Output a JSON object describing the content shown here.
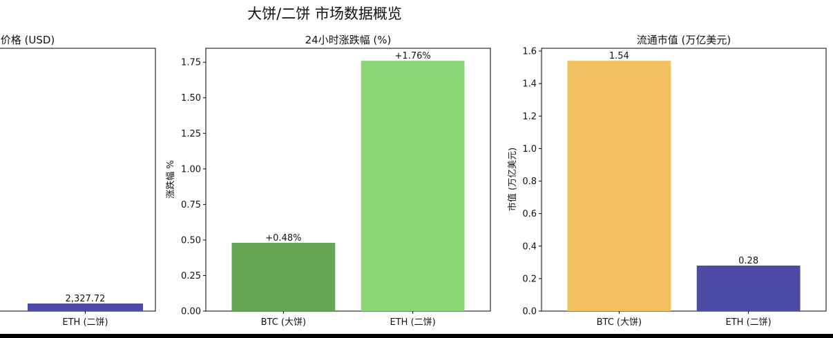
{
  "figure": {
    "suptitle": "大饼/二饼 市场数据概览"
  },
  "chart_data": [
    {
      "type": "bar",
      "title": "价格 (USD)",
      "categories": [
        "ETH (二饼)"
      ],
      "values": [
        2327.72
      ],
      "value_labels": [
        "2,327.72"
      ],
      "colors": [
        "#4c4ca6"
      ],
      "ylabel": ""
    },
    {
      "type": "bar",
      "title": "24小时涨跌幅 (%)",
      "categories": [
        "BTC (大饼)",
        "ETH (二饼)"
      ],
      "values": [
        0.48,
        1.76
      ],
      "value_labels": [
        "+0.48%",
        "+1.76%"
      ],
      "colors": [
        "#64a655",
        "#8cd677"
      ],
      "ylabel": "涨跌幅 %",
      "ylim": [
        0,
        1.848
      ],
      "yticks": [
        "0.00",
        "0.25",
        "0.50",
        "0.75",
        "1.00",
        "1.25",
        "1.50",
        "1.75"
      ],
      "grid": false
    },
    {
      "type": "bar",
      "title": "流通市值 (万亿美元)",
      "categories": [
        "BTC (大饼)",
        "ETH (二饼)"
      ],
      "values": [
        1.54,
        0.28
      ],
      "value_labels": [
        "1.54",
        "0.28"
      ],
      "colors": [
        "#f2c061",
        "#4c4ca6"
      ],
      "ylabel": "市值 (万亿美元)",
      "ylim": [
        0,
        1.617
      ],
      "yticks": [
        "0.0",
        "0.2",
        "0.4",
        "0.6",
        "0.8",
        "1.0",
        "1.2",
        "1.4",
        "1.6"
      ],
      "grid": false
    }
  ]
}
